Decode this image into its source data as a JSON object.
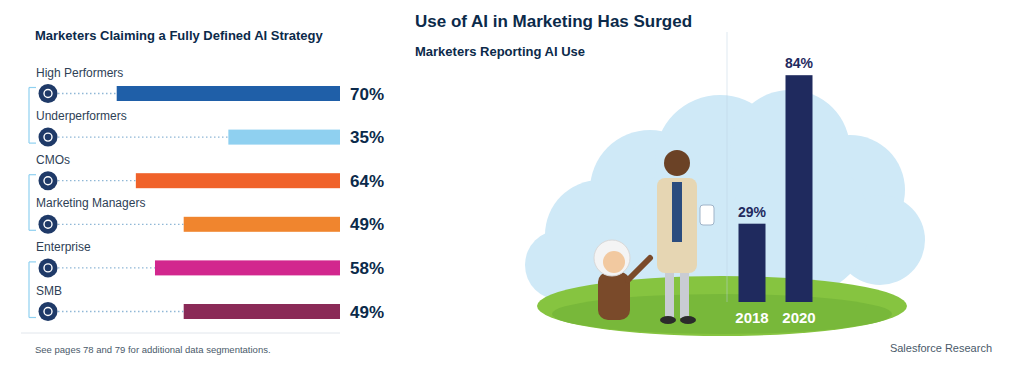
{
  "chart_data": [
    {
      "type": "bar",
      "orientation": "horizontal",
      "title": "Marketers Claiming a Fully Defined AI Strategy",
      "categories": [
        "High Performers",
        "Underperformers",
        "CMOs",
        "Marketing Managers",
        "Enterprise",
        "SMB"
      ],
      "values": [
        70,
        35,
        64,
        49,
        58,
        49
      ],
      "value_labels": [
        "70%",
        "35%",
        "64%",
        "49%",
        "58%",
        "49%"
      ],
      "colors": [
        "#1f5fa8",
        "#8fd0f0",
        "#f0622a",
        "#f0852e",
        "#d2278e",
        "#8a2a57"
      ],
      "xlim": [
        0,
        100
      ],
      "data_labels": true,
      "tick_labels": "y",
      "note": "See pages 78 and 79 for additional data segmentations."
    },
    {
      "type": "bar",
      "title": "Use of AI in Marketing Has Surged",
      "subtitle": "Marketers Reporting AI Use",
      "categories": [
        "2018",
        "2020"
      ],
      "values": [
        29,
        84
      ],
      "value_labels": [
        "29%",
        "84%"
      ],
      "color": "#1f2a5e",
      "ylim": [
        0,
        100
      ],
      "data_labels": true,
      "tick_labels": "x",
      "source": "Salesforce Research"
    }
  ]
}
